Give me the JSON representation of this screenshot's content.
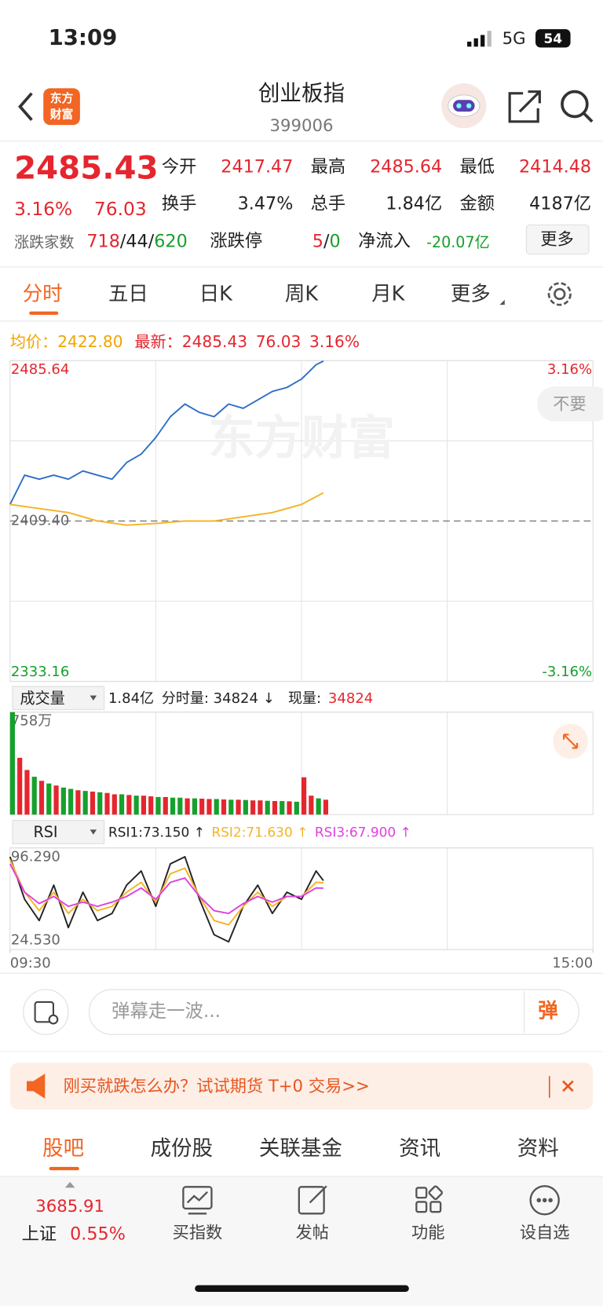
{
  "status_bar": {
    "time": "13:09",
    "network": "5G",
    "battery": "54"
  },
  "header": {
    "logo_top": "东方",
    "logo_bottom": "财富",
    "title": "创业板指",
    "code": "399006"
  },
  "quote": {
    "price": "2485.43",
    "change_pct": "3.16%",
    "change": "76.03",
    "fields": [
      {
        "label": "今开",
        "value": "2417.47"
      },
      {
        "label": "最高",
        "value": "2485.64"
      },
      {
        "label": "最低",
        "value": "2414.48"
      },
      {
        "label": "换手",
        "value": "3.47%"
      },
      {
        "label": "总手",
        "value": "1.84亿"
      },
      {
        "label": "金额",
        "value": "4187亿"
      }
    ],
    "breadth_label": "涨跌家数",
    "up": "718",
    "flat": "44",
    "down": "620",
    "sep": "/",
    "limit_label": "涨跌停",
    "limit_up": "5",
    "limit_down": "0",
    "inflow_label": "净流入",
    "inflow": "-20.07亿",
    "more": "更多"
  },
  "tabs": [
    "分时",
    "五日",
    "日K",
    "周K",
    "月K",
    "更多"
  ],
  "summary": {
    "avg_label": "均价：",
    "avg": "2422.80",
    "latest_label": "最新：",
    "latest": "2485.43",
    "change": "76.03",
    "pct": "3.16%"
  },
  "bubble": "不要",
  "volume_header": {
    "selector": "成交量",
    "total": "1.84亿",
    "minute_volume": "分时量: 34824 ↓",
    "current_label": "现量:",
    "current": "34824"
  },
  "rsi_header": {
    "selector": "RSI"
  },
  "chart_data": [
    {
      "type": "line",
      "watermark": "东方财富",
      "grid": true,
      "xlim": [
        0,
        240
      ],
      "ylim": [
        2333.16,
        2485.64
      ],
      "yticks": [
        2485.64,
        {
          "value": 2409.4,
          "label": "2409.40"
        },
        2333.16
      ],
      "y2lim": [
        -3.16,
        3.16
      ],
      "y2ticks": [
        {
          "value": 3.16,
          "label": "3.16%"
        },
        {
          "value": -3.16,
          "label": "-3.16%"
        }
      ],
      "series": [
        {
          "color": "#2f6fc6",
          "x": [
            0,
            6,
            12,
            18,
            24,
            30,
            36,
            42,
            48,
            54,
            60,
            66,
            72,
            78,
            84,
            90,
            96,
            102,
            108,
            114,
            120,
            126,
            129
          ],
          "values": [
            2417.3,
            2431.2,
            2429.3,
            2431.2,
            2429.3,
            2433.2,
            2431.2,
            2429.3,
            2437.2,
            2441.2,
            2449.1,
            2459.0,
            2465.0,
            2461.0,
            2459.0,
            2465.0,
            2463.0,
            2467.0,
            2471.0,
            2472.9,
            2476.9,
            2483.7,
            2485.43
          ]
        },
        {
          "color": "#f5b324",
          "x": [
            0,
            12,
            24,
            36,
            48,
            60,
            72,
            84,
            96,
            108,
            120,
            129
          ],
          "values": [
            2417.3,
            2415.3,
            2413.4,
            2409.4,
            2407.4,
            2408.2,
            2409.4,
            2409.4,
            2411.4,
            2413.4,
            2417.3,
            2422.8
          ]
        }
      ]
    },
    {
      "type": "bar",
      "grid": true,
      "xlim": [
        0,
        240
      ],
      "ylim": [
        0,
        758
      ],
      "yticks": [
        {
          "value": 758,
          "label": "758万"
        }
      ],
      "x": [
        0,
        3,
        6,
        9,
        12,
        15,
        18,
        21,
        24,
        27,
        30,
        33,
        36,
        39,
        42,
        45,
        48,
        51,
        54,
        57,
        60,
        63,
        66,
        69,
        72,
        75,
        78,
        81,
        84,
        87,
        90,
        93,
        96,
        99,
        102,
        105,
        108,
        111,
        114,
        117,
        120,
        123,
        126,
        129
      ],
      "values": [
        758,
        420,
        330,
        280,
        250,
        230,
        215,
        200,
        190,
        180,
        175,
        170,
        165,
        160,
        150,
        150,
        145,
        140,
        140,
        135,
        130,
        130,
        125,
        125,
        120,
        120,
        118,
        115,
        115,
        112,
        110,
        110,
        108,
        105,
        105,
        102,
        100,
        100,
        98,
        95,
        276,
        140,
        120,
        110
      ],
      "colors": [
        "#16a02c",
        "#e5262e",
        "#e5262e",
        "#16a02c",
        "#e5262e",
        "#16a02c",
        "#e5262e",
        "#16a02c",
        "#16a02c",
        "#e5262e",
        "#16a02c",
        "#e5262e",
        "#16a02c",
        "#e5262e",
        "#e5262e",
        "#16a02c",
        "#e5262e",
        "#16a02c",
        "#e5262e",
        "#e5262e",
        "#16a02c",
        "#e5262e",
        "#16a02c",
        "#16a02c",
        "#e5262e",
        "#16a02c",
        "#e5262e",
        "#e5262e",
        "#16a02c",
        "#e5262e",
        "#16a02c",
        "#e5262e",
        "#16a02c",
        "#e5262e",
        "#e5262e",
        "#16a02c",
        "#e5262e",
        "#16a02c",
        "#e5262e",
        "#16a02c",
        "#e5262e",
        "#e5262e",
        "#16a02c",
        "#e5262e"
      ]
    },
    {
      "type": "line",
      "grid": true,
      "xlim": [
        0,
        240
      ],
      "xticks": [
        {
          "value": 0,
          "label": "09:30"
        },
        {
          "value": 240,
          "label": "15:00"
        }
      ],
      "ylim": [
        24.53,
        96.29
      ],
      "yticks": [
        {
          "value": 96.29,
          "label": "96.290"
        },
        {
          "value": 24.53,
          "label": "24.530"
        }
      ],
      "series": [
        {
          "name": "RSI1:73.150 ↑",
          "color": "#222222",
          "x": [
            0,
            6,
            12,
            18,
            24,
            30,
            36,
            42,
            48,
            54,
            60,
            66,
            72,
            78,
            84,
            90,
            96,
            102,
            108,
            114,
            120,
            126,
            129
          ],
          "values": [
            90,
            60,
            45,
            70,
            40,
            65,
            45,
            50,
            70,
            80,
            55,
            85,
            90,
            60,
            35,
            30,
            55,
            70,
            50,
            65,
            60,
            80,
            73.15
          ]
        },
        {
          "name": "RSI2:71.630 ↑",
          "color": "#f5b324",
          "x": [
            0,
            6,
            12,
            18,
            24,
            30,
            36,
            42,
            48,
            54,
            60,
            66,
            72,
            78,
            84,
            90,
            96,
            102,
            108,
            114,
            120,
            126,
            129
          ],
          "values": [
            88,
            65,
            52,
            65,
            50,
            60,
            52,
            55,
            65,
            72,
            58,
            78,
            82,
            62,
            45,
            42,
            55,
            65,
            55,
            62,
            62,
            72,
            71.63
          ]
        },
        {
          "name": "RSI3:67.900 ↑",
          "color": "#e040e0",
          "x": [
            0,
            6,
            12,
            18,
            24,
            30,
            36,
            42,
            48,
            54,
            60,
            66,
            72,
            78,
            84,
            90,
            96,
            102,
            108,
            114,
            120,
            126,
            129
          ],
          "values": [
            85,
            65,
            57,
            62,
            55,
            58,
            55,
            58,
            62,
            68,
            60,
            72,
            75,
            62,
            52,
            50,
            57,
            62,
            58,
            62,
            62,
            68,
            67.9
          ]
        }
      ]
    }
  ],
  "comment_bar": {
    "placeholder": "弹幕走一波...",
    "button": "弹"
  },
  "banner": {
    "text": "刚买就跌怎么办？试试期货 T+0 交易>>"
  },
  "section_tabs": [
    "股吧",
    "成份股",
    "关联基金",
    "资讯",
    "资料"
  ],
  "bottom_nav": {
    "index_price": "3685.91",
    "index_name": "上证",
    "index_pct": "0.55%",
    "items": [
      "买指数",
      "发帖",
      "功能",
      "设自选"
    ]
  }
}
